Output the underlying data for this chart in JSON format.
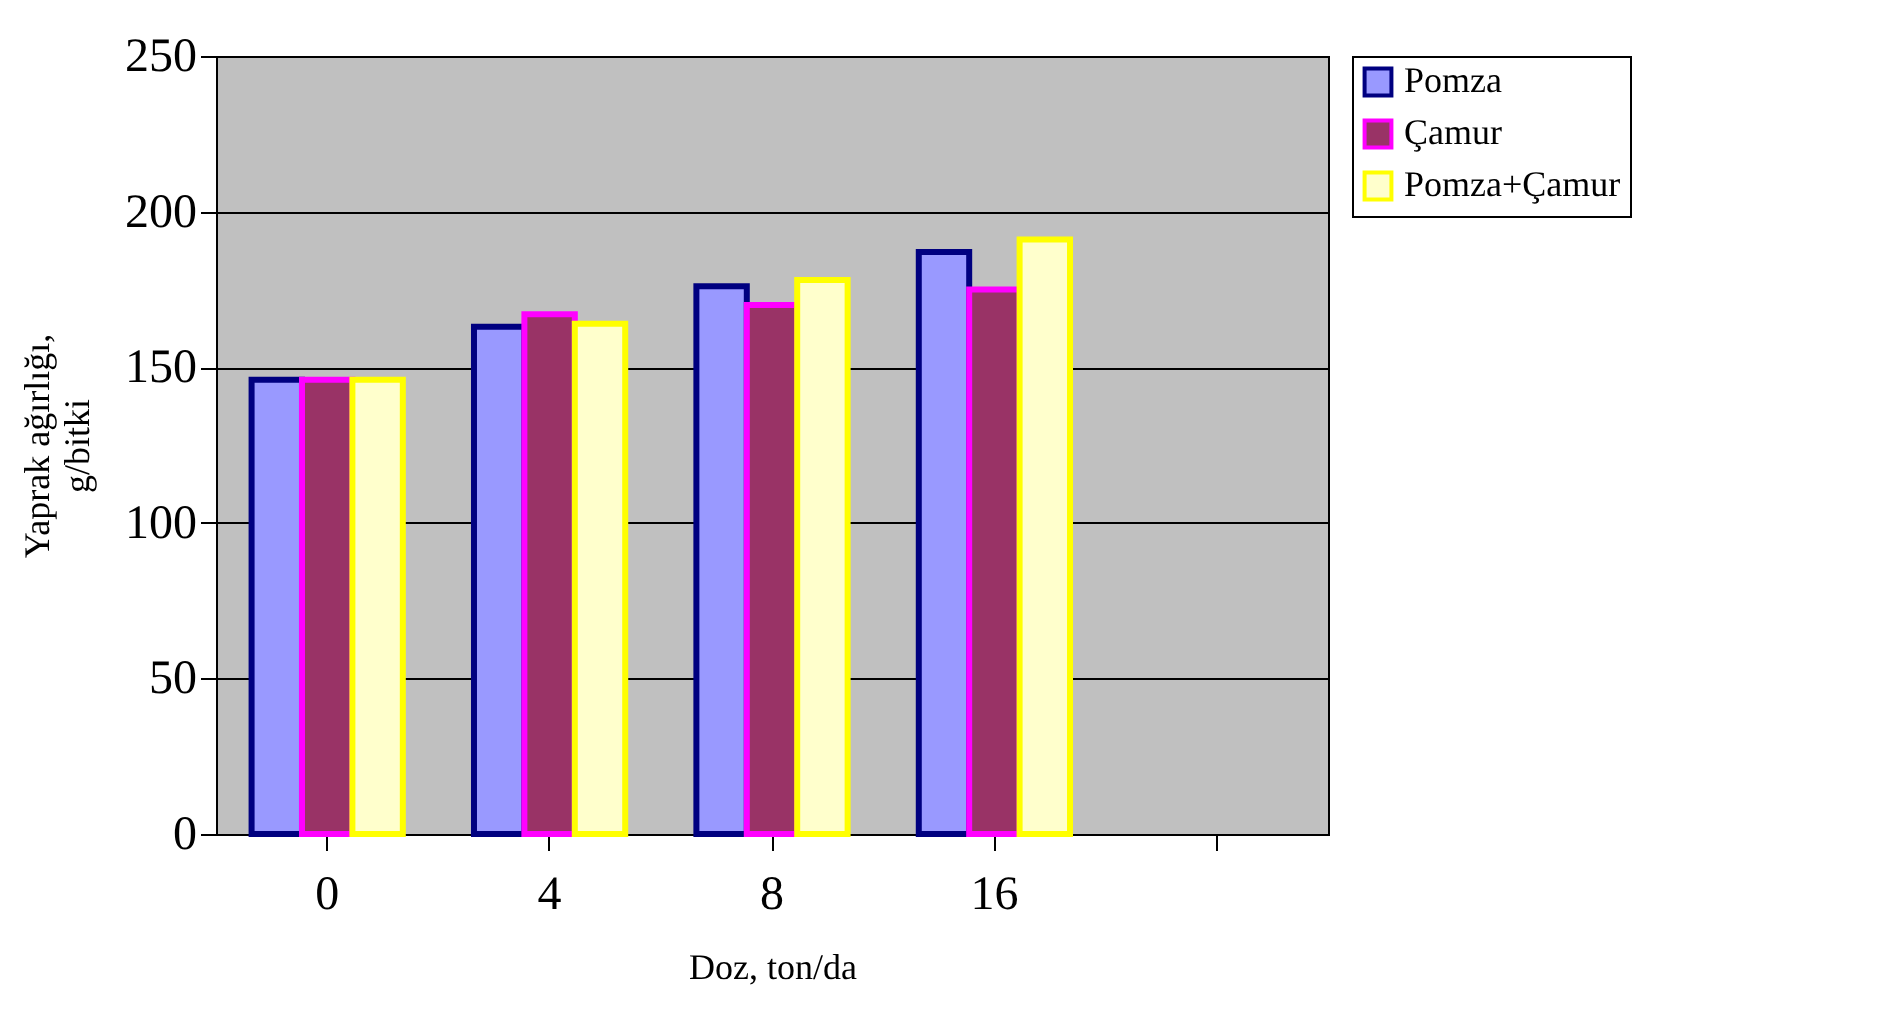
{
  "chart_data": {
    "type": "bar",
    "xlabel": "Doz, ton/da",
    "ylabel": "Yaprak ağırlığı, g/bitki",
    "categories": [
      "0",
      "4",
      "8",
      "16",
      null
    ],
    "series": [
      {
        "name": "Pomza",
        "color": "#9999ff",
        "values": [
          146,
          163,
          176,
          187,
          null
        ]
      },
      {
        "name": "Çamur",
        "color": "#993366",
        "values": [
          146,
          167,
          170,
          175,
          null
        ]
      },
      {
        "name": "Pomza+Çamur",
        "color": "#ffffcc",
        "values": [
          146,
          164,
          178,
          191,
          null
        ]
      }
    ],
    "ylim": [
      0,
      250
    ],
    "yticks": [
      0,
      50,
      100,
      150,
      200,
      250
    ],
    "grid": "y",
    "legend": "right"
  }
}
